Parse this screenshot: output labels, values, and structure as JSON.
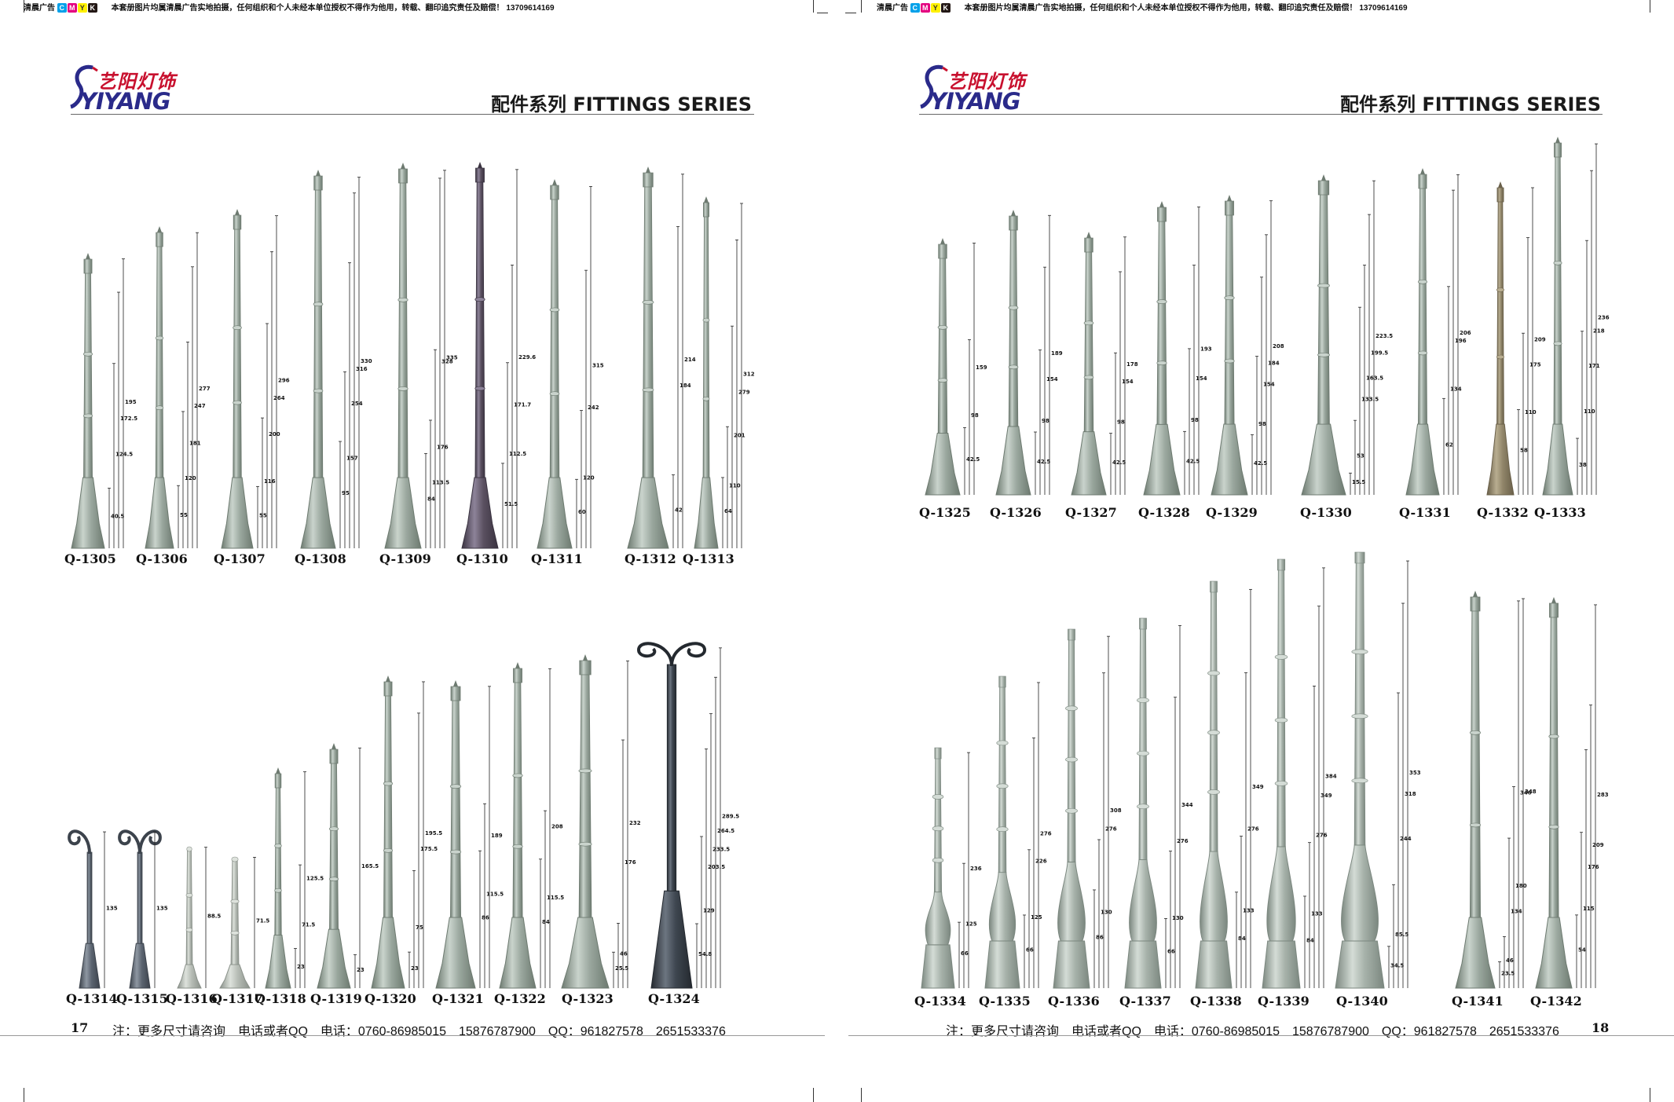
{
  "print_note": "本套册图片均属清晨广告实地拍摄，任何组织和个人未经本单位授权不得作为他用，转载、翻印追究责任及赔偿！ 13709614169",
  "printer_name": "清晨广告",
  "cmyk": [
    "C",
    "M",
    "Y",
    "K"
  ],
  "colors": {
    "cmyk_c": "#00a0e9",
    "cmyk_m": "#e4007f",
    "cmyk_y": "#fff100",
    "cmyk_k": "#231815",
    "logo_red": "#c8102e",
    "logo_blue": "#2a2a8a"
  },
  "logo": {
    "chinese": "艺阳灯饰",
    "english": "YIYANG"
  },
  "series_title": "配件系列 FITTINGS SERIES",
  "footer_note": "注：更多尺寸请咨询　电话或者QQ　电话：0760-86985015　15876787900　QQ：961827578　2651533376",
  "pages": {
    "left": {
      "page_number": "17",
      "row1": [
        {
          "code": "Q-1305",
          "dims": [
            "40.5",
            "124.5",
            "172.5",
            "195"
          ]
        },
        {
          "code": "Q-1306",
          "dims": [
            "55",
            "120",
            "181",
            "247",
            "277"
          ]
        },
        {
          "code": "Q-1307",
          "dims": [
            "55",
            "116",
            "200",
            "264",
            "296"
          ]
        },
        {
          "code": "Q-1308",
          "dims": [
            "95",
            "157",
            "254",
            "316",
            "330"
          ]
        },
        {
          "code": "Q-1309",
          "dims": [
            "84",
            "113.5",
            "176",
            "328",
            "335"
          ]
        },
        {
          "code": "Q-1310",
          "dims": [
            "51.5",
            "112.5",
            "171.7",
            "229.6"
          ]
        },
        {
          "code": "Q-1311",
          "dims": [
            "60",
            "120",
            "242",
            "315"
          ]
        },
        {
          "code": "Q-1312",
          "dims": [
            "42",
            "184",
            "214"
          ]
        },
        {
          "code": "Q-1313",
          "dims": [
            "64",
            "110",
            "201",
            "279",
            "312"
          ]
        }
      ],
      "row2": [
        {
          "code": "Q-1314",
          "dims": [
            "135"
          ]
        },
        {
          "code": "Q-1315",
          "dims": [
            "135"
          ]
        },
        {
          "code": "Q-1316",
          "dims": [
            "88.5"
          ]
        },
        {
          "code": "Q-1317",
          "dims": [
            "71.5"
          ]
        },
        {
          "code": "Q-1318",
          "dims": [
            "23",
            "71.5",
            "125.5"
          ]
        },
        {
          "code": "Q-1319",
          "dims": [
            "23",
            "165.5"
          ]
        },
        {
          "code": "Q-1320",
          "dims": [
            "23",
            "75",
            "175.5",
            "195.5"
          ]
        },
        {
          "code": "Q-1321",
          "dims": [
            "86",
            "115.5",
            "189"
          ]
        },
        {
          "code": "Q-1322",
          "dims": [
            "84",
            "115.5",
            "208"
          ]
        },
        {
          "code": "Q-1323",
          "dims": [
            "25.5",
            "46",
            "176",
            "232"
          ]
        },
        {
          "code": "Q-1324",
          "dims": [
            "54.8",
            "129",
            "203.5",
            "233.5",
            "264.5",
            "289.5"
          ]
        }
      ]
    },
    "right": {
      "page_number": "18",
      "row1": [
        {
          "code": "Q-1325",
          "dims": [
            "42.5",
            "98",
            "159"
          ]
        },
        {
          "code": "Q-1326",
          "dims": [
            "42.5",
            "98",
            "154",
            "189"
          ]
        },
        {
          "code": "Q-1327",
          "dims": [
            "42.5",
            "98",
            "154",
            "178"
          ]
        },
        {
          "code": "Q-1328",
          "dims": [
            "42.5",
            "98",
            "154",
            "193"
          ]
        },
        {
          "code": "Q-1329",
          "dims": [
            "42.5",
            "98",
            "154",
            "184",
            "208"
          ]
        },
        {
          "code": "Q-1330",
          "dims": [
            "15.5",
            "53",
            "133.5",
            "163.5",
            "199.5",
            "223.5"
          ]
        },
        {
          "code": "Q-1331",
          "dims": [
            "62",
            "134",
            "196",
            "206"
          ]
        },
        {
          "code": "Q-1332",
          "dims": [
            "58",
            "110",
            "175",
            "209"
          ]
        },
        {
          "code": "Q-1333",
          "dims": [
            "38",
            "110",
            "171",
            "218",
            "236"
          ]
        }
      ],
      "row2": [
        {
          "code": "Q-1334",
          "dims": [
            "66",
            "125",
            "236"
          ]
        },
        {
          "code": "Q-1335",
          "dims": [
            "66",
            "125",
            "226",
            "276"
          ]
        },
        {
          "code": "Q-1336",
          "dims": [
            "86",
            "130",
            "276",
            "308"
          ]
        },
        {
          "code": "Q-1337",
          "dims": [
            "66",
            "130",
            "276",
            "344"
          ]
        },
        {
          "code": "Q-1338",
          "dims": [
            "84",
            "133",
            "276",
            "349"
          ]
        },
        {
          "code": "Q-1339",
          "dims": [
            "84",
            "133",
            "276",
            "349",
            "384"
          ]
        },
        {
          "code": "Q-1340",
          "dims": [
            "34.5",
            "85.5",
            "244",
            "318",
            "353"
          ]
        },
        {
          "code": "Q-1341",
          "dims": [
            "23.5",
            "46",
            "134",
            "180",
            "346",
            "348"
          ]
        },
        {
          "code": "Q-1342",
          "dims": [
            "54",
            "115",
            "176",
            "209",
            "283"
          ]
        }
      ]
    }
  }
}
